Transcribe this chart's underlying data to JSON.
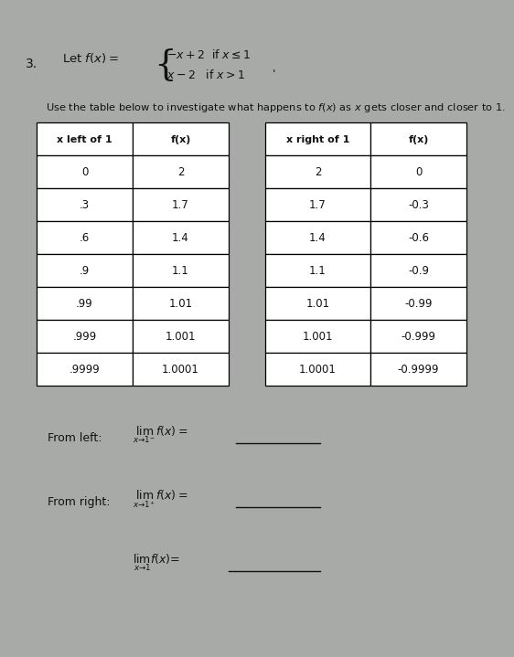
{
  "problem_number": "3.",
  "bg_color": "#a8aaa8",
  "instruction": "Use the table below to investigate what happens to $f(x)$ as $x$ gets closer and closer to 1.",
  "left_table": {
    "headers": [
      "x left of 1",
      "f(x)"
    ],
    "rows": [
      [
        "0",
        "2"
      ],
      [
        ".3",
        "1.7"
      ],
      [
        ".6",
        "1.4"
      ],
      [
        ".9",
        "1.1"
      ],
      [
        ".99",
        "1.01"
      ],
      [
        ".999",
        "1.001"
      ],
      [
        ".9999",
        "1.0001"
      ]
    ]
  },
  "right_table": {
    "headers": [
      "x right of 1",
      "f(x)"
    ],
    "rows": [
      [
        "2",
        "0"
      ],
      [
        "1.7",
        "-0.3"
      ],
      [
        "1.4",
        "-0.6"
      ],
      [
        "1.1",
        "-0.9"
      ],
      [
        "1.01",
        "-0.99"
      ],
      [
        "1.001",
        "-0.999"
      ],
      [
        "1.0001",
        "-0.9999"
      ]
    ]
  },
  "table_bg": "#ffffff",
  "table_edge": "#000000",
  "text_color": "#111111"
}
